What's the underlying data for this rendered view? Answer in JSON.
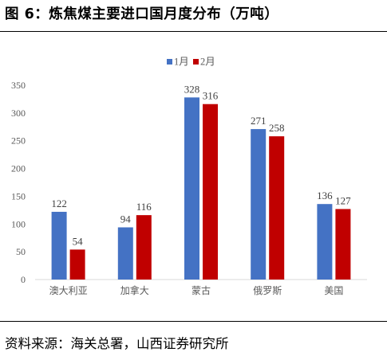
{
  "figure": {
    "title": "图 6：炼焦煤主要进口国月度分布（万吨）",
    "source": "资料来源：海关总署，山西证券研究所"
  },
  "colors": {
    "series1": "#4472C4",
    "series2": "#C00000",
    "axis": "#D9D9D9",
    "tick_text": "#595959"
  },
  "chart_data": {
    "type": "bar",
    "categories": [
      "澳大利亚",
      "加拿大",
      "蒙古",
      "俄罗斯",
      "美国"
    ],
    "series": [
      {
        "name": "1月",
        "values": [
          122,
          94,
          328,
          271,
          136
        ]
      },
      {
        "name": "2月",
        "values": [
          54,
          116,
          316,
          258,
          127
        ]
      }
    ],
    "ylim": [
      0,
      350
    ],
    "yticks": [
      0,
      50,
      100,
      150,
      200,
      250,
      300,
      350
    ],
    "grid": false,
    "legend": "top-center",
    "data_labels": true
  }
}
